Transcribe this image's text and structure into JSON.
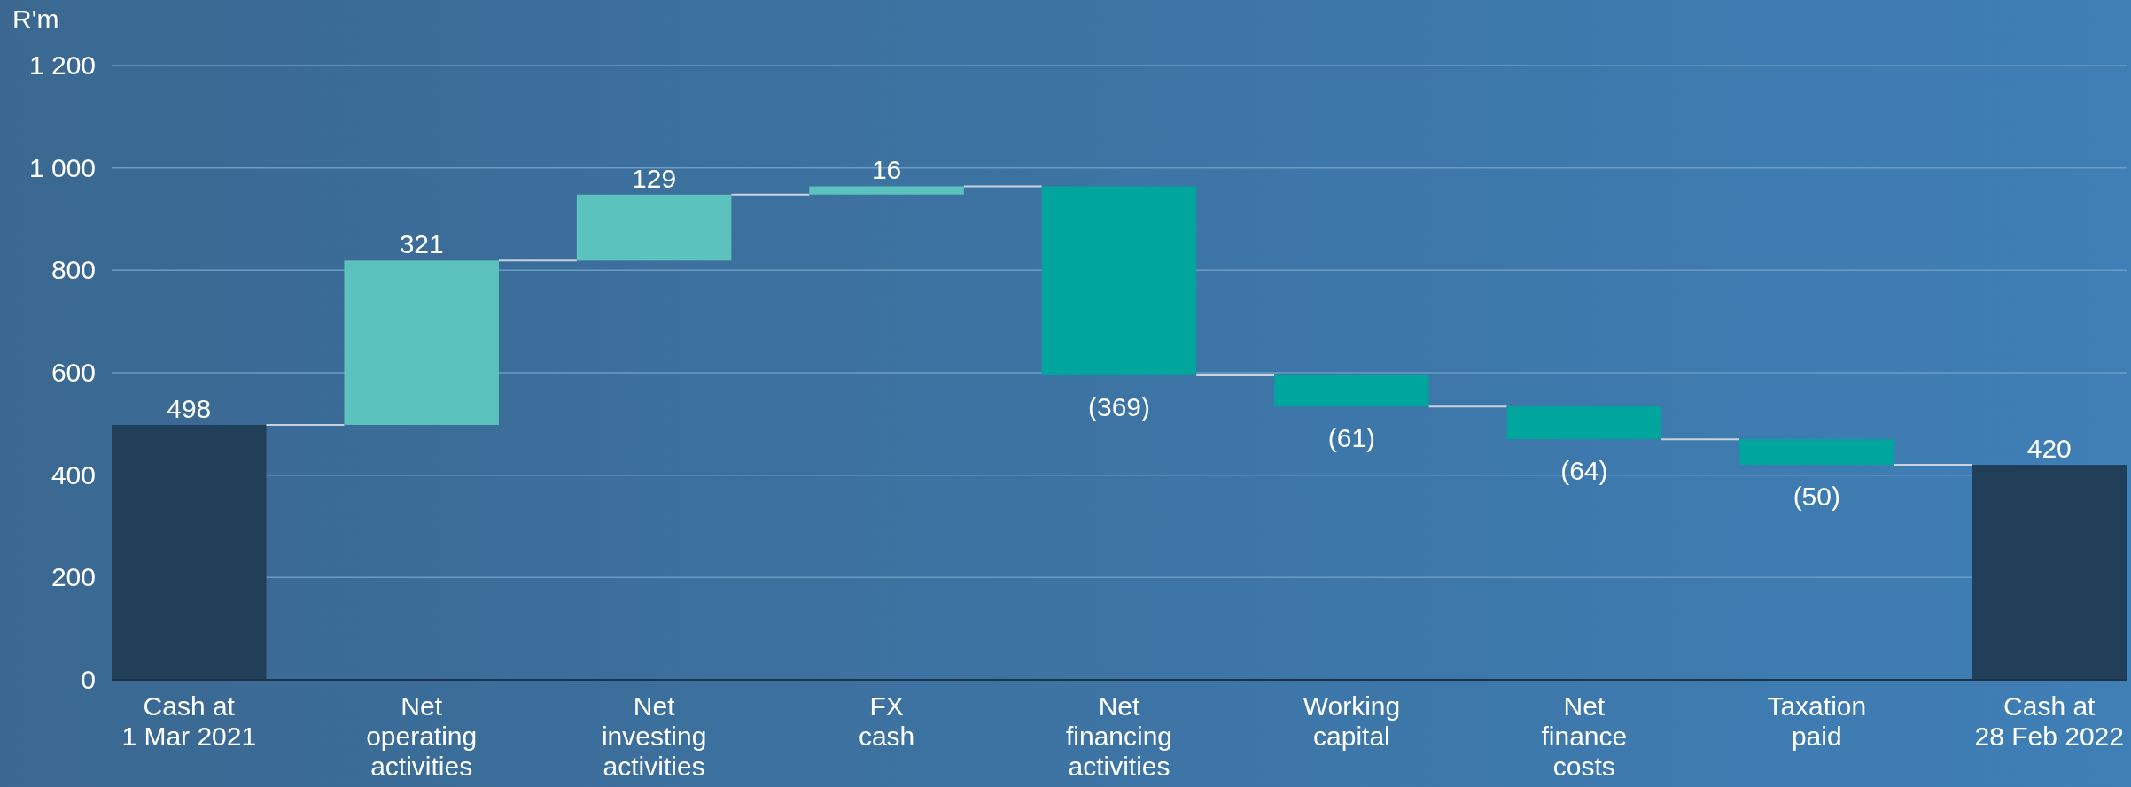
{
  "chart_data": {
    "type": "bar",
    "ylabel": "R'm",
    "categories": [
      "Cash at\n1 Mar 2021",
      "Net\noperating\nactivities",
      "Net\ninvesting\nactivities",
      "FX\ncash",
      "Net\nfinancing\nactivities",
      "Working\ncapital",
      "Net\nfinance\ncosts",
      "Taxation\npaid",
      "Cash at\n28 Feb 2022"
    ],
    "values": [
      498,
      321,
      129,
      16,
      -369,
      -61,
      -64,
      -50,
      420
    ],
    "base": [
      0,
      498,
      819,
      948,
      964,
      595,
      534,
      470,
      0
    ],
    "colors": [
      "#213f58",
      "#5bc2bd",
      "#5bc2bd",
      "#5bc2bd",
      "#00a59e",
      "#00a59e",
      "#00a59e",
      "#00a59e",
      "#213f58"
    ],
    "value_labels": [
      "498",
      "321",
      "129",
      "16",
      "(369)",
      "(61)",
      "(64)",
      "(50)",
      "420"
    ],
    "ylim": [
      0,
      1200
    ],
    "yticks": [
      0,
      200,
      400,
      600,
      800,
      {
        "value": 1000,
        "label": "1 000"
      },
      {
        "value": 1200,
        "label": "1 200"
      }
    ],
    "grid": "y"
  }
}
